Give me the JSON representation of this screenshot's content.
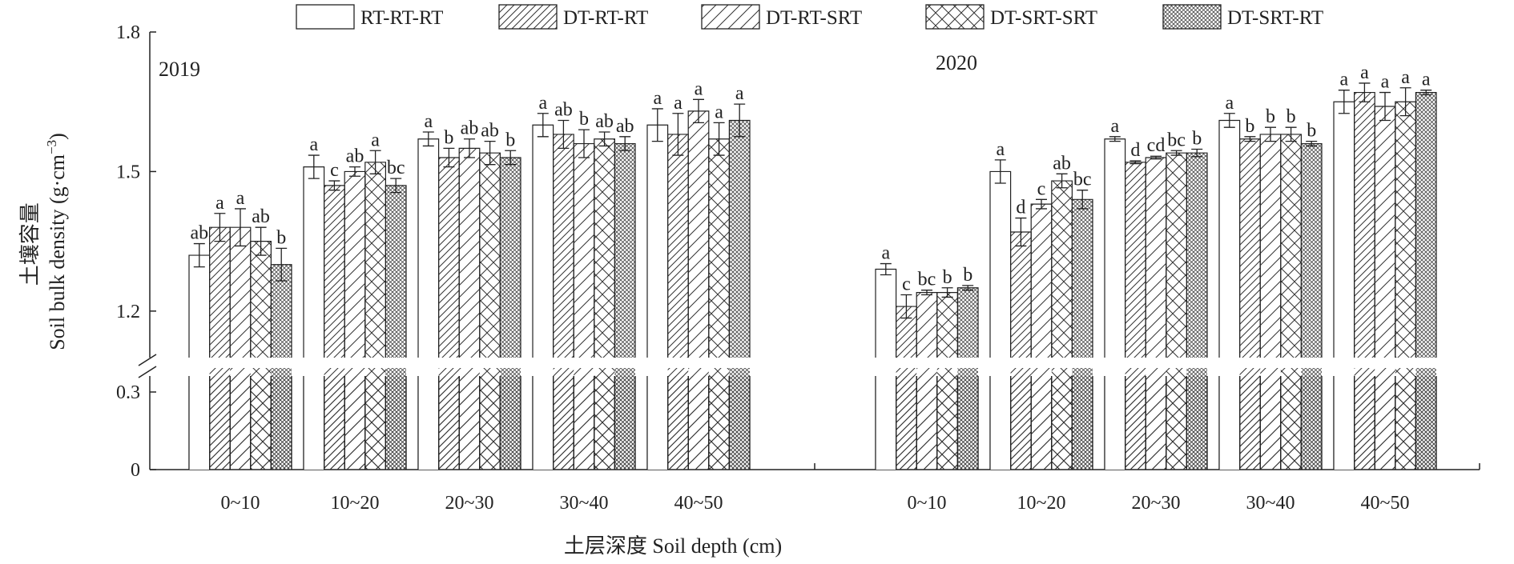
{
  "chart_data": {
    "type": "bar",
    "title": "",
    "xlabel": "土层深度 Soil depth (cm)",
    "ylabel_cn": "土壤容量",
    "ylabel_en": "Soil bulk density (g·cm",
    "ylabel_exp": "−3",
    "ylabel_close": ")",
    "y_ticks": [
      "0",
      "0.3",
      "1.2",
      "1.5",
      "1.8"
    ],
    "axis_break": {
      "lower": [
        0,
        0.3
      ],
      "upper": [
        1.1,
        1.8
      ]
    },
    "legend_position": "top",
    "categories": [
      "0~10",
      "10~20",
      "20~30",
      "30~40",
      "40~50"
    ],
    "series_names": [
      "RT-RT-RT",
      "DT-RT-RT",
      "DT-RT-SRT",
      "DT-SRT-SRT",
      "DT-SRT-RT"
    ],
    "series_patterns": [
      "none",
      "diag-fine",
      "diag-wide",
      "crosshatch",
      "dense-check"
    ],
    "panels": [
      {
        "year": "2019",
        "series": [
          {
            "name": "RT-RT-RT",
            "values": [
              1.32,
              1.51,
              1.57,
              1.6,
              1.6
            ],
            "errors": [
              0.025,
              0.025,
              0.015,
              0.025,
              0.035
            ],
            "letters": [
              "ab",
              "a",
              "a",
              "a",
              "a"
            ]
          },
          {
            "name": "DT-RT-RT",
            "values": [
              1.38,
              1.47,
              1.53,
              1.58,
              1.58
            ],
            "errors": [
              0.03,
              0.01,
              0.02,
              0.03,
              0.045
            ],
            "letters": [
              "a",
              "c",
              "b",
              "ab",
              "a"
            ]
          },
          {
            "name": "DT-RT-SRT",
            "values": [
              1.38,
              1.5,
              1.55,
              1.56,
              1.63
            ],
            "errors": [
              0.04,
              0.01,
              0.02,
              0.03,
              0.025
            ],
            "letters": [
              "a",
              "ab",
              "ab",
              "b",
              "a"
            ]
          },
          {
            "name": "DT-SRT-SRT",
            "values": [
              1.35,
              1.52,
              1.54,
              1.57,
              1.57
            ],
            "errors": [
              0.03,
              0.025,
              0.025,
              0.015,
              0.035
            ],
            "letters": [
              "ab",
              "a",
              "ab",
              "ab",
              "a"
            ]
          },
          {
            "name": "DT-SRT-RT",
            "values": [
              1.3,
              1.47,
              1.53,
              1.56,
              1.61
            ],
            "errors": [
              0.035,
              0.015,
              0.015,
              0.015,
              0.035
            ],
            "letters": [
              "b",
              "bc",
              "b",
              "ab",
              "a"
            ]
          }
        ]
      },
      {
        "year": "2020",
        "series": [
          {
            "name": "RT-RT-RT",
            "values": [
              1.29,
              1.5,
              1.57,
              1.61,
              1.65
            ],
            "errors": [
              0.012,
              0.025,
              0.005,
              0.015,
              0.025
            ],
            "letters": [
              "a",
              "a",
              "a",
              "a",
              "a"
            ]
          },
          {
            "name": "DT-RT-RT",
            "values": [
              1.21,
              1.37,
              1.52,
              1.57,
              1.67
            ],
            "errors": [
              0.025,
              0.03,
              0.003,
              0.005,
              0.02
            ],
            "letters": [
              "c",
              "d",
              "d",
              "b",
              "a"
            ]
          },
          {
            "name": "DT-RT-SRT",
            "values": [
              1.24,
              1.43,
              1.53,
              1.58,
              1.64
            ],
            "errors": [
              0.005,
              0.01,
              0.003,
              0.015,
              0.03
            ],
            "letters": [
              "bc",
              "c",
              "cd",
              "b",
              "a"
            ]
          },
          {
            "name": "DT-SRT-SRT",
            "values": [
              1.24,
              1.48,
              1.54,
              1.58,
              1.65
            ],
            "errors": [
              0.01,
              0.015,
              0.005,
              0.015,
              0.03
            ],
            "letters": [
              "b",
              "ab",
              "bc",
              "b",
              "a"
            ]
          },
          {
            "name": "DT-SRT-RT",
            "values": [
              1.25,
              1.44,
              1.54,
              1.56,
              1.67
            ],
            "errors": [
              0.005,
              0.02,
              0.008,
              0.005,
              0.005
            ],
            "letters": [
              "b",
              "bc",
              "b",
              "b",
              "a"
            ]
          }
        ]
      }
    ]
  }
}
